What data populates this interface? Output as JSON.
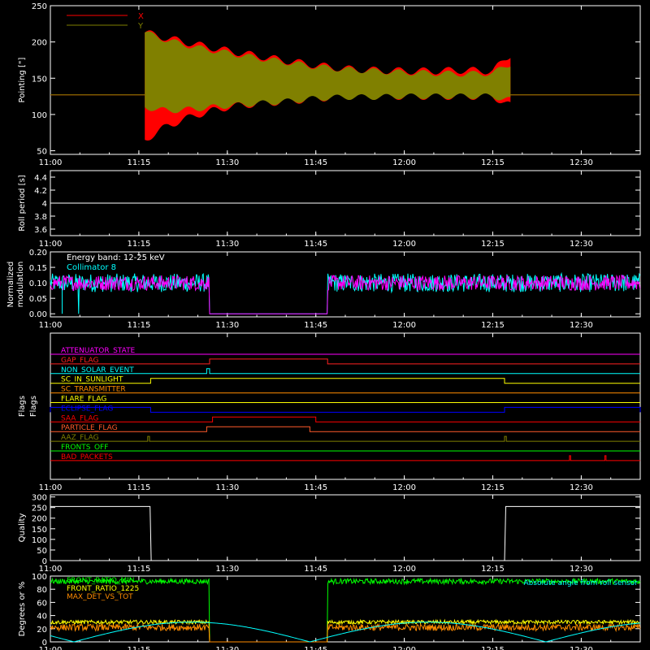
{
  "time_ticks": [
    "11:00",
    "11:15",
    "11:30",
    "11:45",
    "12:00",
    "12:15",
    "12:30"
  ],
  "chart_data": [
    {
      "type": "area",
      "ylabel": "Pointing [\"]",
      "yticks": [
        50,
        100,
        150,
        200,
        250
      ],
      "ylim": [
        45,
        250
      ],
      "xlim": [
        "11:00",
        "12:40"
      ],
      "legend": "top-left",
      "series": [
        {
          "name": "X",
          "color": "#ff0000",
          "baseline": 127,
          "x": [
            "11:16",
            "11:20",
            "11:25",
            "11:30",
            "11:35",
            "11:40",
            "11:45",
            "11:50",
            "11:55",
            "12:00",
            "12:05",
            "12:10",
            "12:15",
            "12:18"
          ],
          "max": [
            213,
            205,
            196,
            188,
            181,
            174,
            168,
            163,
            161,
            160,
            160,
            161,
            160,
            183
          ],
          "min": [
            65,
            85,
            100,
            110,
            115,
            118,
            122,
            125,
            125,
            125,
            125,
            125,
            125,
            112
          ]
        },
        {
          "name": "Y",
          "color": "#808000",
          "baseline": 127,
          "x": [
            "11:16",
            "11:20",
            "11:25",
            "11:30",
            "11:35",
            "11:40",
            "11:45",
            "11:50",
            "11:55",
            "12:00",
            "12:05",
            "12:10",
            "12:15",
            "12:18"
          ],
          "max": [
            213,
            202,
            192,
            185,
            178,
            172,
            166,
            162,
            160,
            158,
            157,
            156,
            157,
            170
          ],
          "min": [
            110,
            105,
            108,
            112,
            115,
            118,
            122,
            124,
            124,
            125,
            125,
            125,
            125,
            120
          ]
        }
      ]
    },
    {
      "type": "line",
      "ylabel": "Roll period [s]",
      "yticks": [
        3.6,
        3.8,
        4.0,
        4.2,
        4.4
      ],
      "ylim": [
        3.5,
        4.5
      ],
      "series": [
        {
          "name": "",
          "color": "#ffffff",
          "x": [
            "11:00",
            "12:40"
          ],
          "values": [
            4.0,
            4.0
          ]
        }
      ]
    },
    {
      "type": "line",
      "ylabel": "Normalized modulation",
      "yticks": [
        "0.00",
        "0.05",
        "0.10",
        "0.15",
        "0.20"
      ],
      "ylim": [
        -0.01,
        0.2
      ],
      "annotations": [
        "Energy band: 12-25 keV"
      ],
      "series": [
        {
          "name": "Collimator 8",
          "color": "#00ffff",
          "level": 0.1,
          "noise": 0.03,
          "segments": [
            [
              "11:00",
              "11:27"
            ],
            [
              "11:47",
              "12:40"
            ]
          ],
          "gap_value": 0.0
        },
        {
          "name": "",
          "color": "#ff00ff",
          "level": 0.1,
          "noise": 0.025,
          "segments": [
            [
              "11:00",
              "11:27"
            ],
            [
              "11:47",
              "12:40"
            ]
          ],
          "gap_value": 0.0
        }
      ]
    },
    {
      "type": "line",
      "ylabel": "Flags",
      "flags": [
        {
          "name": "ATTENUATOR_STATE",
          "color": "#ff00ff",
          "high": []
        },
        {
          "name": "GAP_FLAG",
          "color": "#ff2020",
          "high": [
            [
              "11:27",
              "11:47"
            ]
          ]
        },
        {
          "name": "NON_SOLAR_EVENT",
          "color": "#00ffff",
          "high": [
            [
              "11:26.5",
              "11:27"
            ]
          ]
        },
        {
          "name": "SC_IN_SUNLIGHT",
          "color": "#ffff00",
          "high": [
            [
              "11:17",
              "12:17"
            ]
          ]
        },
        {
          "name": "SC_TRANSMITTER",
          "color": "#ff8c00",
          "high": []
        },
        {
          "name": "FLARE_FLAG",
          "color": "#ffff00",
          "high": []
        },
        {
          "name": "ECLIPSE_FLAG",
          "color": "#0000ff",
          "high": [
            [
              "11:00",
              "11:17"
            ],
            [
              "12:17",
              "12:40"
            ]
          ]
        },
        {
          "name": "SAA_FLAG",
          "color": "#ff0000",
          "high": [
            [
              "11:27.5",
              "11:45"
            ]
          ]
        },
        {
          "name": "PARTICLE_FLAG",
          "color": "#ff5a2a",
          "high": [
            [
              "11:26.5",
              "11:44"
            ]
          ]
        },
        {
          "name": "AAZ_FLAG",
          "color": "#808000",
          "high": [
            [
              "11:16.5",
              "11:16.8"
            ],
            [
              "12:17",
              "12:17.3"
            ]
          ]
        },
        {
          "name": "FRONTS_OFF",
          "color": "#00ff00",
          "high": []
        },
        {
          "name": "BAD_PACKETS",
          "color": "#ff0000",
          "high": [
            [
              "12:28",
              "12:28.2"
            ],
            [
              "12:34",
              "12:34.2"
            ]
          ]
        }
      ]
    },
    {
      "type": "line",
      "ylabel": "Quality",
      "yticks": [
        0,
        50,
        100,
        150,
        200,
        250,
        300
      ],
      "ylim": [
        0,
        310
      ],
      "series": [
        {
          "name": "",
          "color": "#ffffff",
          "x": [
            "11:00",
            "11:16.9",
            "11:17.1",
            "12:17",
            "12:17.2",
            "12:40"
          ],
          "values": [
            255,
            255,
            0,
            0,
            255,
            255
          ]
        }
      ]
    },
    {
      "type": "line",
      "ylabel": "Degrees or %",
      "yticks": [
        0,
        20,
        40,
        60,
        80,
        100
      ],
      "ylim": [
        0,
        100
      ],
      "annotations": [
        "Absolute angle from roll sensor"
      ],
      "series": [
        {
          "name": "FRONT_RATIO_MIN",
          "color": "#00ff00",
          "level": 92,
          "noise": 4,
          "segments": [
            [
              "11:00",
              "11:27"
            ],
            [
              "11:47",
              "12:40"
            ]
          ]
        },
        {
          "name": "FRONT_RATIO_1225",
          "color": "#ffff00",
          "level": 30,
          "noise": 3,
          "segments": [
            [
              "11:00",
              "11:27"
            ],
            [
              "11:47",
              "12:40"
            ]
          ]
        },
        {
          "name": "MAX_DET_VS_TOT",
          "color": "#ff8c00",
          "level": 22,
          "noise": 5,
          "segments": [
            [
              "11:00",
              "11:27"
            ],
            [
              "11:47",
              "12:40"
            ]
          ]
        },
        {
          "name": "",
          "color": "#00ffff",
          "wave": {
            "amp": 30,
            "period_min": 40
          }
        }
      ]
    }
  ]
}
